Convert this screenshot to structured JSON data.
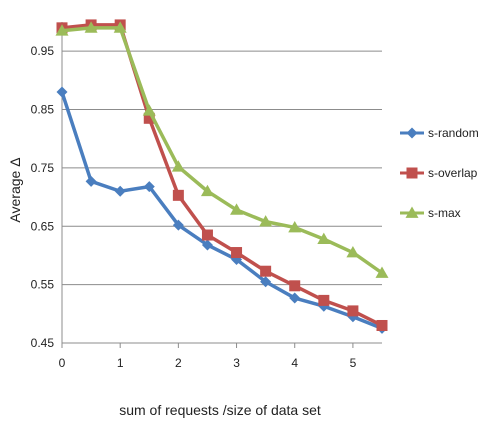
{
  "chart_data": {
    "type": "line",
    "title": "",
    "xlabel": "sum of requests /size of data set",
    "ylabel": "Average Δ",
    "xlim": [
      0,
      5.5
    ],
    "ylim": [
      0.45,
      1.0
    ],
    "x_ticks": [
      "0",
      "1",
      "2",
      "3",
      "4",
      "5"
    ],
    "x_tick_values": [
      0,
      1,
      2,
      3,
      4,
      5
    ],
    "y_ticks": [
      "0.45",
      "0.55",
      "0.65",
      "0.75",
      "0.85",
      "0.95"
    ],
    "y_tick_values": [
      0.45,
      0.55,
      0.65,
      0.75,
      0.85,
      0.95
    ],
    "grid": "horizontal",
    "legend_position": "right",
    "x": [
      0,
      0.5,
      1,
      1.5,
      2,
      2.5,
      3,
      3.5,
      4,
      4.5,
      5,
      5.5
    ],
    "series": [
      {
        "name": "s-random",
        "color": "#4a7ebf",
        "marker": "diamond",
        "values": [
          0.88,
          0.727,
          0.71,
          0.718,
          0.652,
          0.618,
          0.593,
          0.555,
          0.527,
          0.513,
          0.495,
          0.475
        ]
      },
      {
        "name": "s-overlap",
        "color": "#c0504d",
        "marker": "square",
        "values": [
          0.99,
          0.995,
          0.995,
          0.835,
          0.703,
          0.635,
          0.605,
          0.573,
          0.548,
          0.523,
          0.505,
          0.48
        ]
      },
      {
        "name": "s-max",
        "color": "#9bbb59",
        "marker": "triangle",
        "values": [
          0.985,
          0.99,
          0.99,
          0.848,
          0.752,
          0.71,
          0.678,
          0.658,
          0.648,
          0.628,
          0.605,
          0.57
        ]
      }
    ]
  }
}
